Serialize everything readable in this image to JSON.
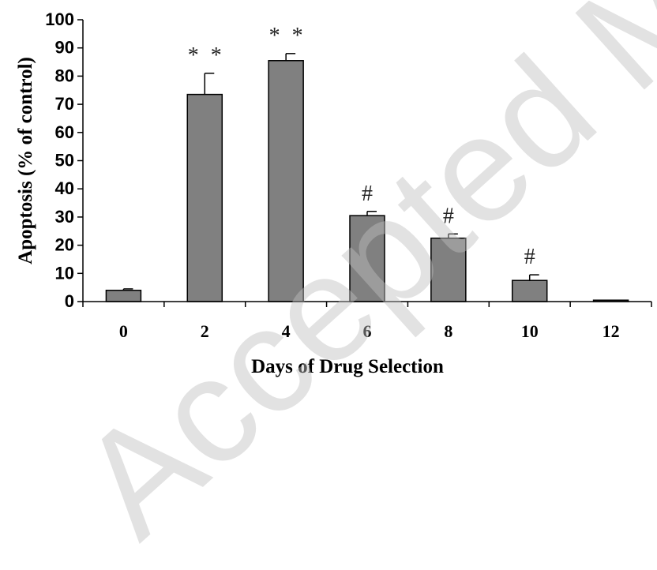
{
  "watermark_text": "Accepted Manuscript",
  "chart_data": {
    "type": "bar",
    "categories": [
      "0",
      "2",
      "4",
      "6",
      "8",
      "10",
      "12"
    ],
    "values": [
      4,
      73.5,
      85.5,
      30.5,
      22.5,
      7.5,
      0.5
    ],
    "errors": [
      0.5,
      7.5,
      2.5,
      1.5,
      1.5,
      2,
      0
    ],
    "annotations": [
      "",
      "* *",
      "* *",
      "#",
      "#",
      "#",
      ""
    ],
    "xlabel": "Days of Drug Selection",
    "ylabel": "Apoptosis (% of control)",
    "ylim": [
      0,
      100
    ],
    "yticks": [
      "0",
      "10",
      "20",
      "30",
      "40",
      "50",
      "60",
      "70",
      "80",
      "90",
      "100"
    ],
    "grid": false,
    "bar_color": "#808080"
  }
}
